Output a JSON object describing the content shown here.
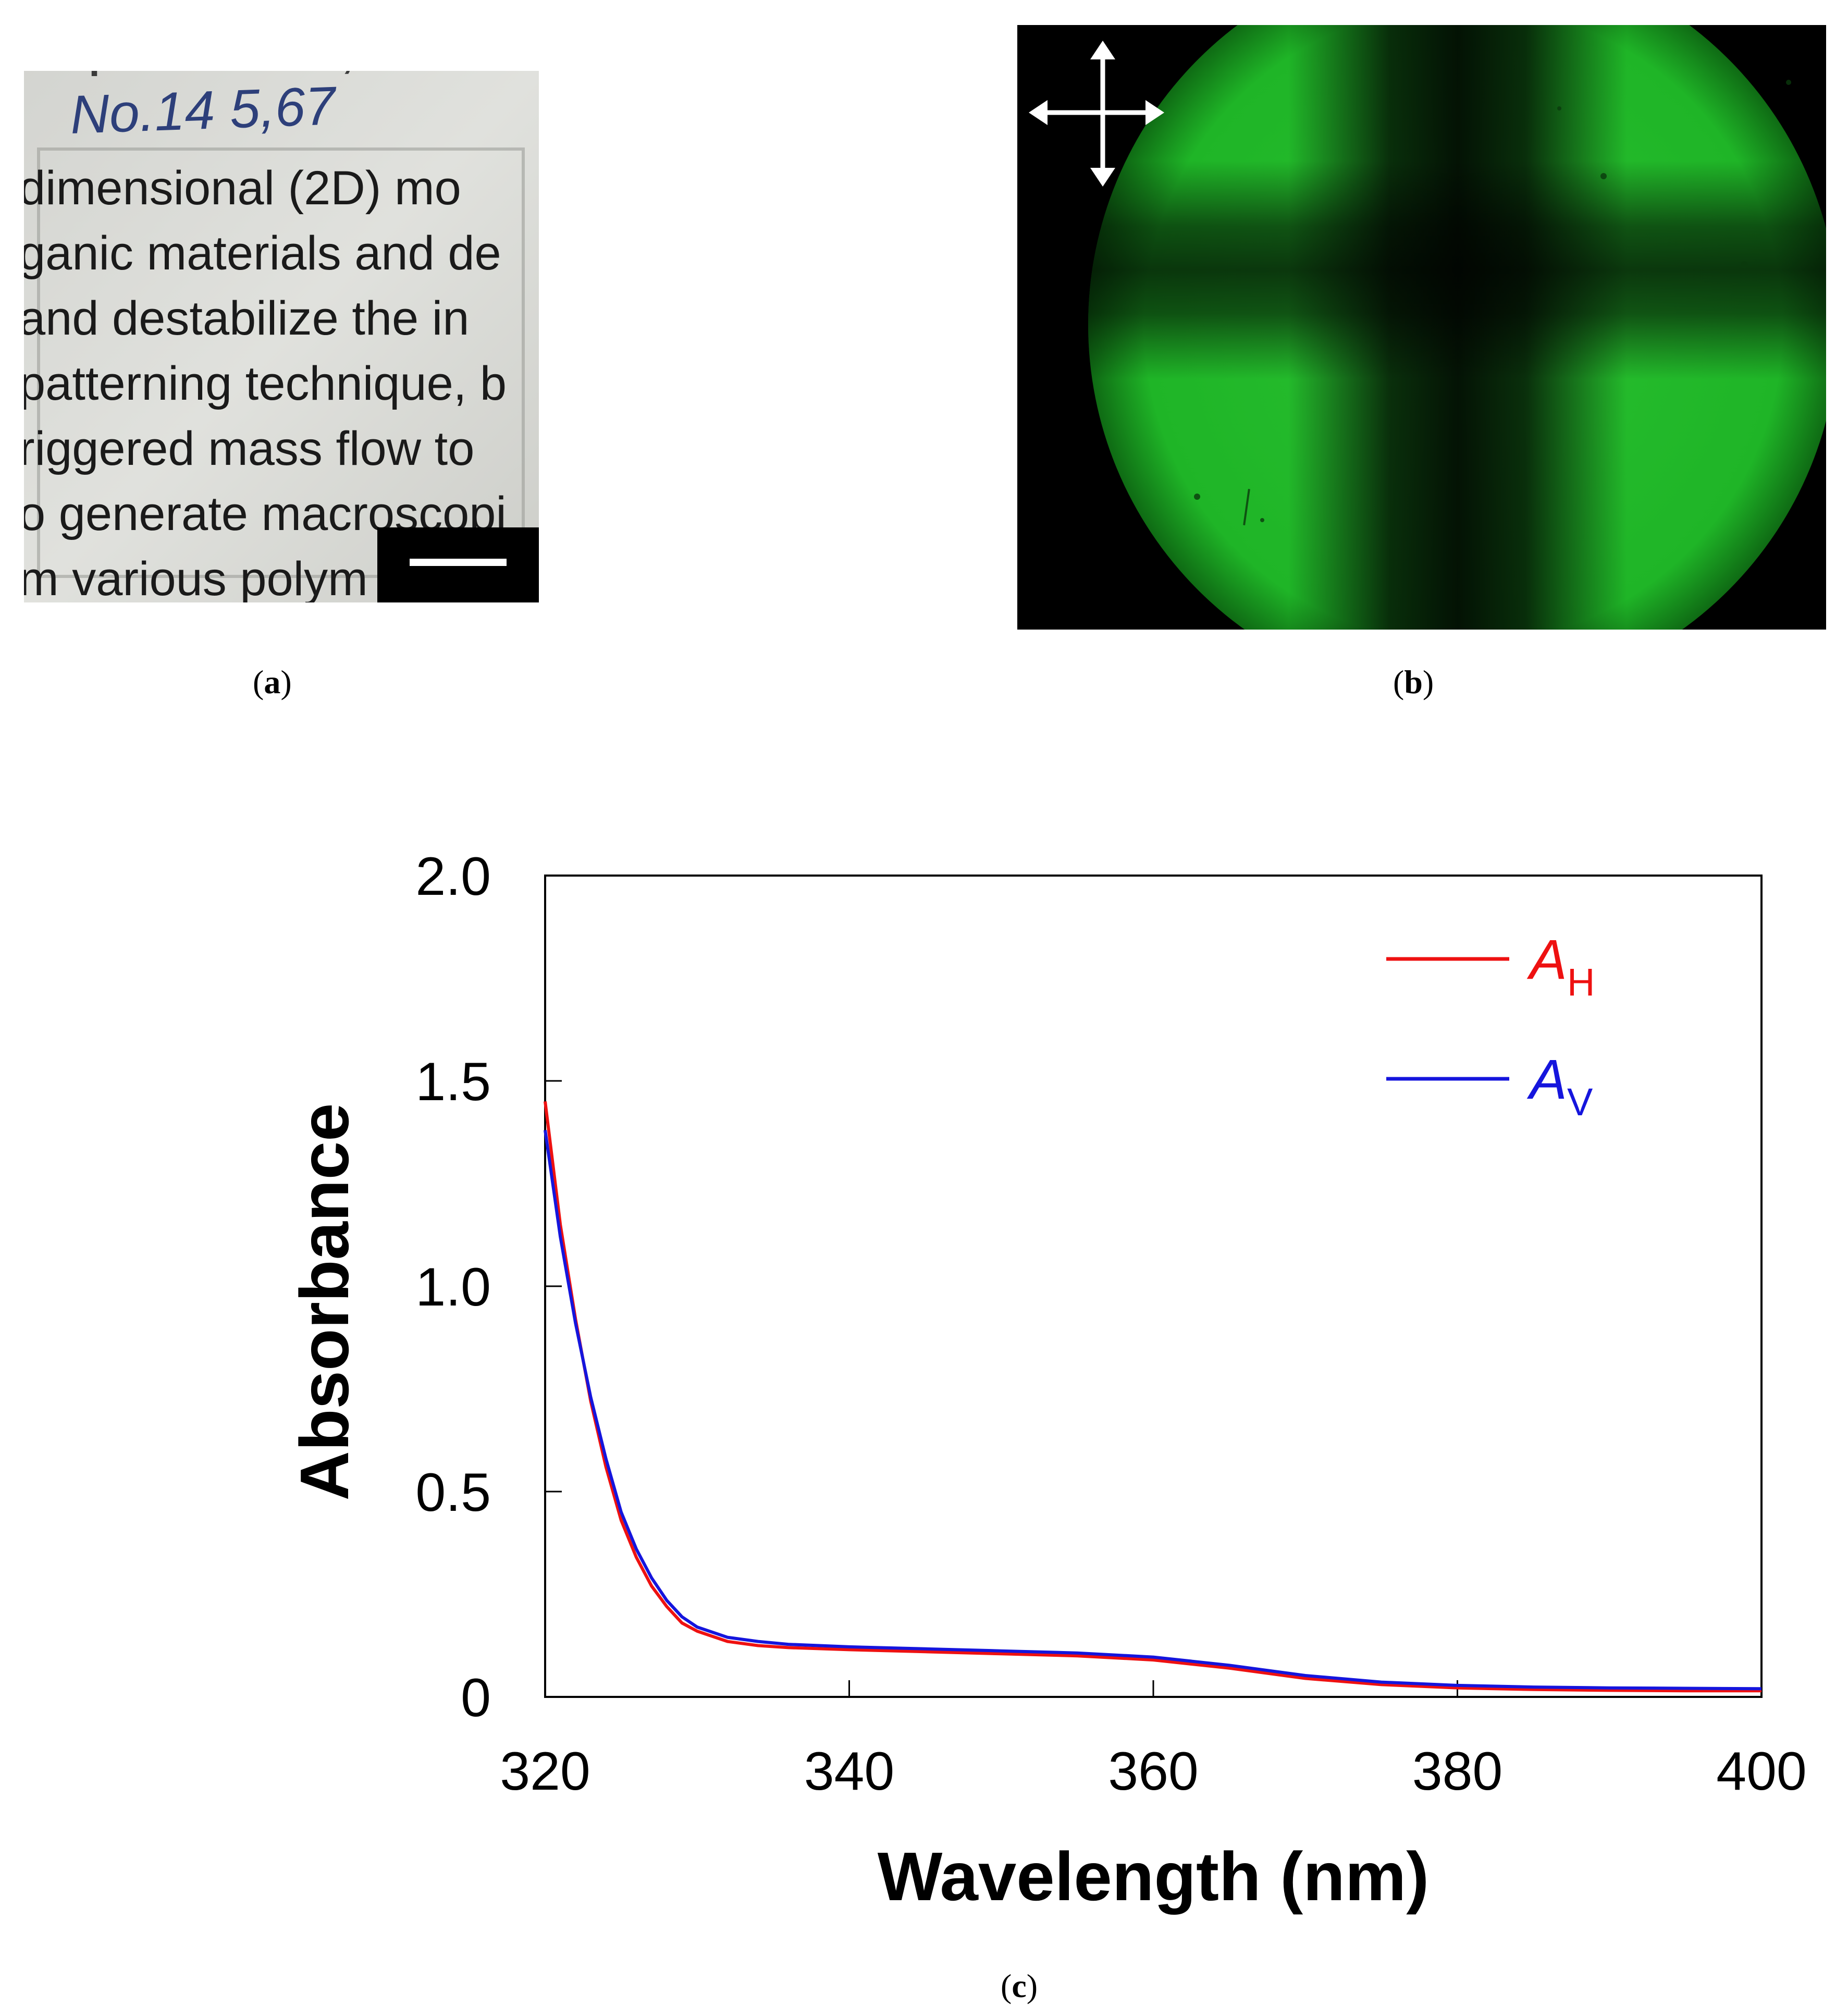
{
  "panel_a": {
    "caption_open": "(",
    "caption_letter": "a",
    "caption_close": ")",
    "label_top": "capher  b  barres,",
    "handwriting": "No.14 5,67",
    "text_lines": [
      "dimensional (2D) mo",
      "ganic materials and de",
      "and destabilize the in",
      "patterning technique, b",
      "riggered mass flow to",
      "o generate macroscopi",
      "m various polym"
    ]
  },
  "panel_b": {
    "caption_open": "(",
    "caption_letter": "b",
    "caption_close": ")",
    "icon": "crossed-polarizer-arrows-icon"
  },
  "panel_c": {
    "caption_open": "(",
    "caption_letter": "c",
    "caption_close": ")"
  },
  "chart_data": {
    "type": "line",
    "title": "",
    "xlabel": "Wavelength (nm)",
    "ylabel": "Absorbance",
    "xlim": [
      320,
      400
    ],
    "ylim": [
      0,
      2.0
    ],
    "x_ticks": [
      "320",
      "340",
      "360",
      "380",
      "400"
    ],
    "y_ticks": [
      "0",
      "0.5",
      "1.0",
      "1.5",
      "2.0"
    ],
    "x_tick_values": [
      320,
      340,
      360,
      380,
      400
    ],
    "y_tick_values": [
      0,
      0.5,
      1.0,
      1.5,
      2.0
    ],
    "legend_position": "top-right",
    "series": [
      {
        "name": "AH",
        "legend_main": "A",
        "legend_sub": "H",
        "color": "#ee1111",
        "x": [
          320,
          321,
          322,
          323,
          324,
          325,
          326,
          327,
          328,
          329,
          330,
          332,
          334,
          336,
          340,
          345,
          350,
          355,
          360,
          365,
          370,
          375,
          380,
          385,
          390,
          395,
          400
        ],
        "y": [
          1.45,
          1.15,
          0.92,
          0.72,
          0.56,
          0.43,
          0.34,
          0.27,
          0.22,
          0.18,
          0.16,
          0.135,
          0.125,
          0.12,
          0.115,
          0.11,
          0.105,
          0.1,
          0.09,
          0.07,
          0.045,
          0.03,
          0.022,
          0.018,
          0.016,
          0.015,
          0.015
        ]
      },
      {
        "name": "AV",
        "legend_main": "A",
        "legend_sub": "V",
        "color": "#1515dd",
        "x": [
          320,
          321,
          322,
          323,
          324,
          325,
          326,
          327,
          328,
          329,
          330,
          332,
          334,
          336,
          340,
          345,
          350,
          355,
          360,
          365,
          370,
          375,
          380,
          385,
          390,
          395,
          400
        ],
        "y": [
          1.38,
          1.12,
          0.91,
          0.73,
          0.58,
          0.45,
          0.36,
          0.29,
          0.235,
          0.195,
          0.17,
          0.145,
          0.135,
          0.128,
          0.122,
          0.117,
          0.112,
          0.107,
          0.097,
          0.077,
          0.052,
          0.036,
          0.028,
          0.024,
          0.022,
          0.021,
          0.02
        ]
      }
    ]
  }
}
